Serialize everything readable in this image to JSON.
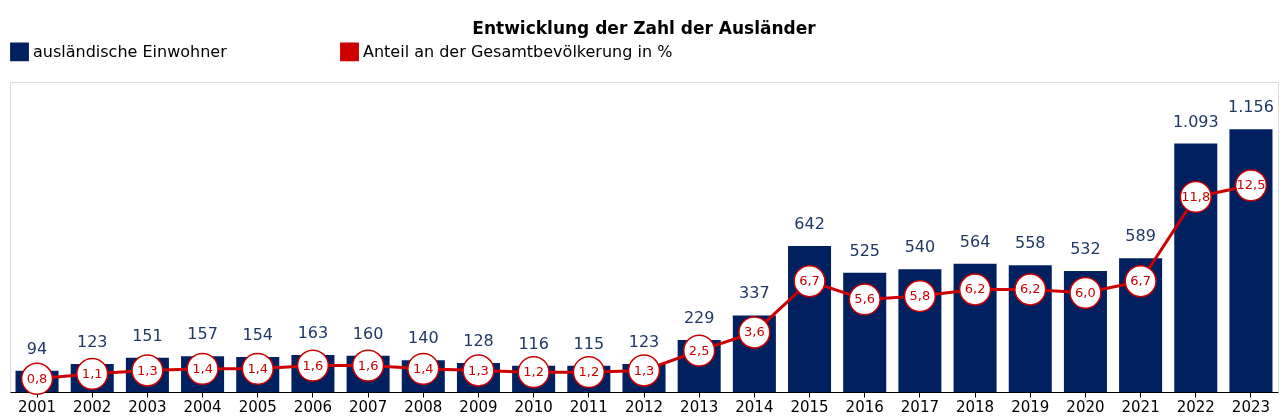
{
  "chart_data": {
    "type": "bar",
    "title": "Entwicklung der Zahl der Ausländer",
    "categories": [
      "2001",
      "2002",
      "2003",
      "2004",
      "2005",
      "2006",
      "2007",
      "2008",
      "2009",
      "2010",
      "2011",
      "2012",
      "2013",
      "2014",
      "2015",
      "2016",
      "2017",
      "2018",
      "2019",
      "2020",
      "2021",
      "2022",
      "2023"
    ],
    "series": [
      {
        "name": "ausländische Einwohner",
        "color": "#002060",
        "values": [
          94,
          123,
          151,
          157,
          154,
          163,
          160,
          140,
          128,
          116,
          115,
          123,
          229,
          337,
          642,
          525,
          540,
          564,
          558,
          532,
          589,
          1093,
          1156
        ],
        "value_labels": [
          "94",
          "123",
          "151",
          "157",
          "154",
          "163",
          "160",
          "140",
          "128",
          "116",
          "115",
          "123",
          "229",
          "337",
          "642",
          "525",
          "540",
          "564",
          "558",
          "532",
          "589",
          "1.093",
          "1.156"
        ]
      },
      {
        "name": "Anteil an der Gesamtbevölkerung in %",
        "type": "line",
        "axis": "y2",
        "color": "#cc0000",
        "values": [
          0.8,
          1.1,
          1.3,
          1.4,
          1.4,
          1.6,
          1.6,
          1.4,
          1.3,
          1.2,
          1.2,
          1.3,
          2.5,
          3.6,
          6.7,
          5.6,
          5.8,
          6.2,
          6.2,
          6.0,
          6.7,
          11.8,
          12.5
        ],
        "value_labels": [
          "0,8",
          "1,1",
          "1,3",
          "1,4",
          "1,4",
          "1,6",
          "1,6",
          "1,4",
          "1,3",
          "1,2",
          "1,2",
          "1,3",
          "2,5",
          "3,6",
          "6,7",
          "5,6",
          "5,8",
          "6,2",
          "6,2",
          "6,0",
          "6,7",
          "11,8",
          "12,5"
        ]
      }
    ],
    "marker": "circle",
    "legend": "top",
    "grid": false
  }
}
